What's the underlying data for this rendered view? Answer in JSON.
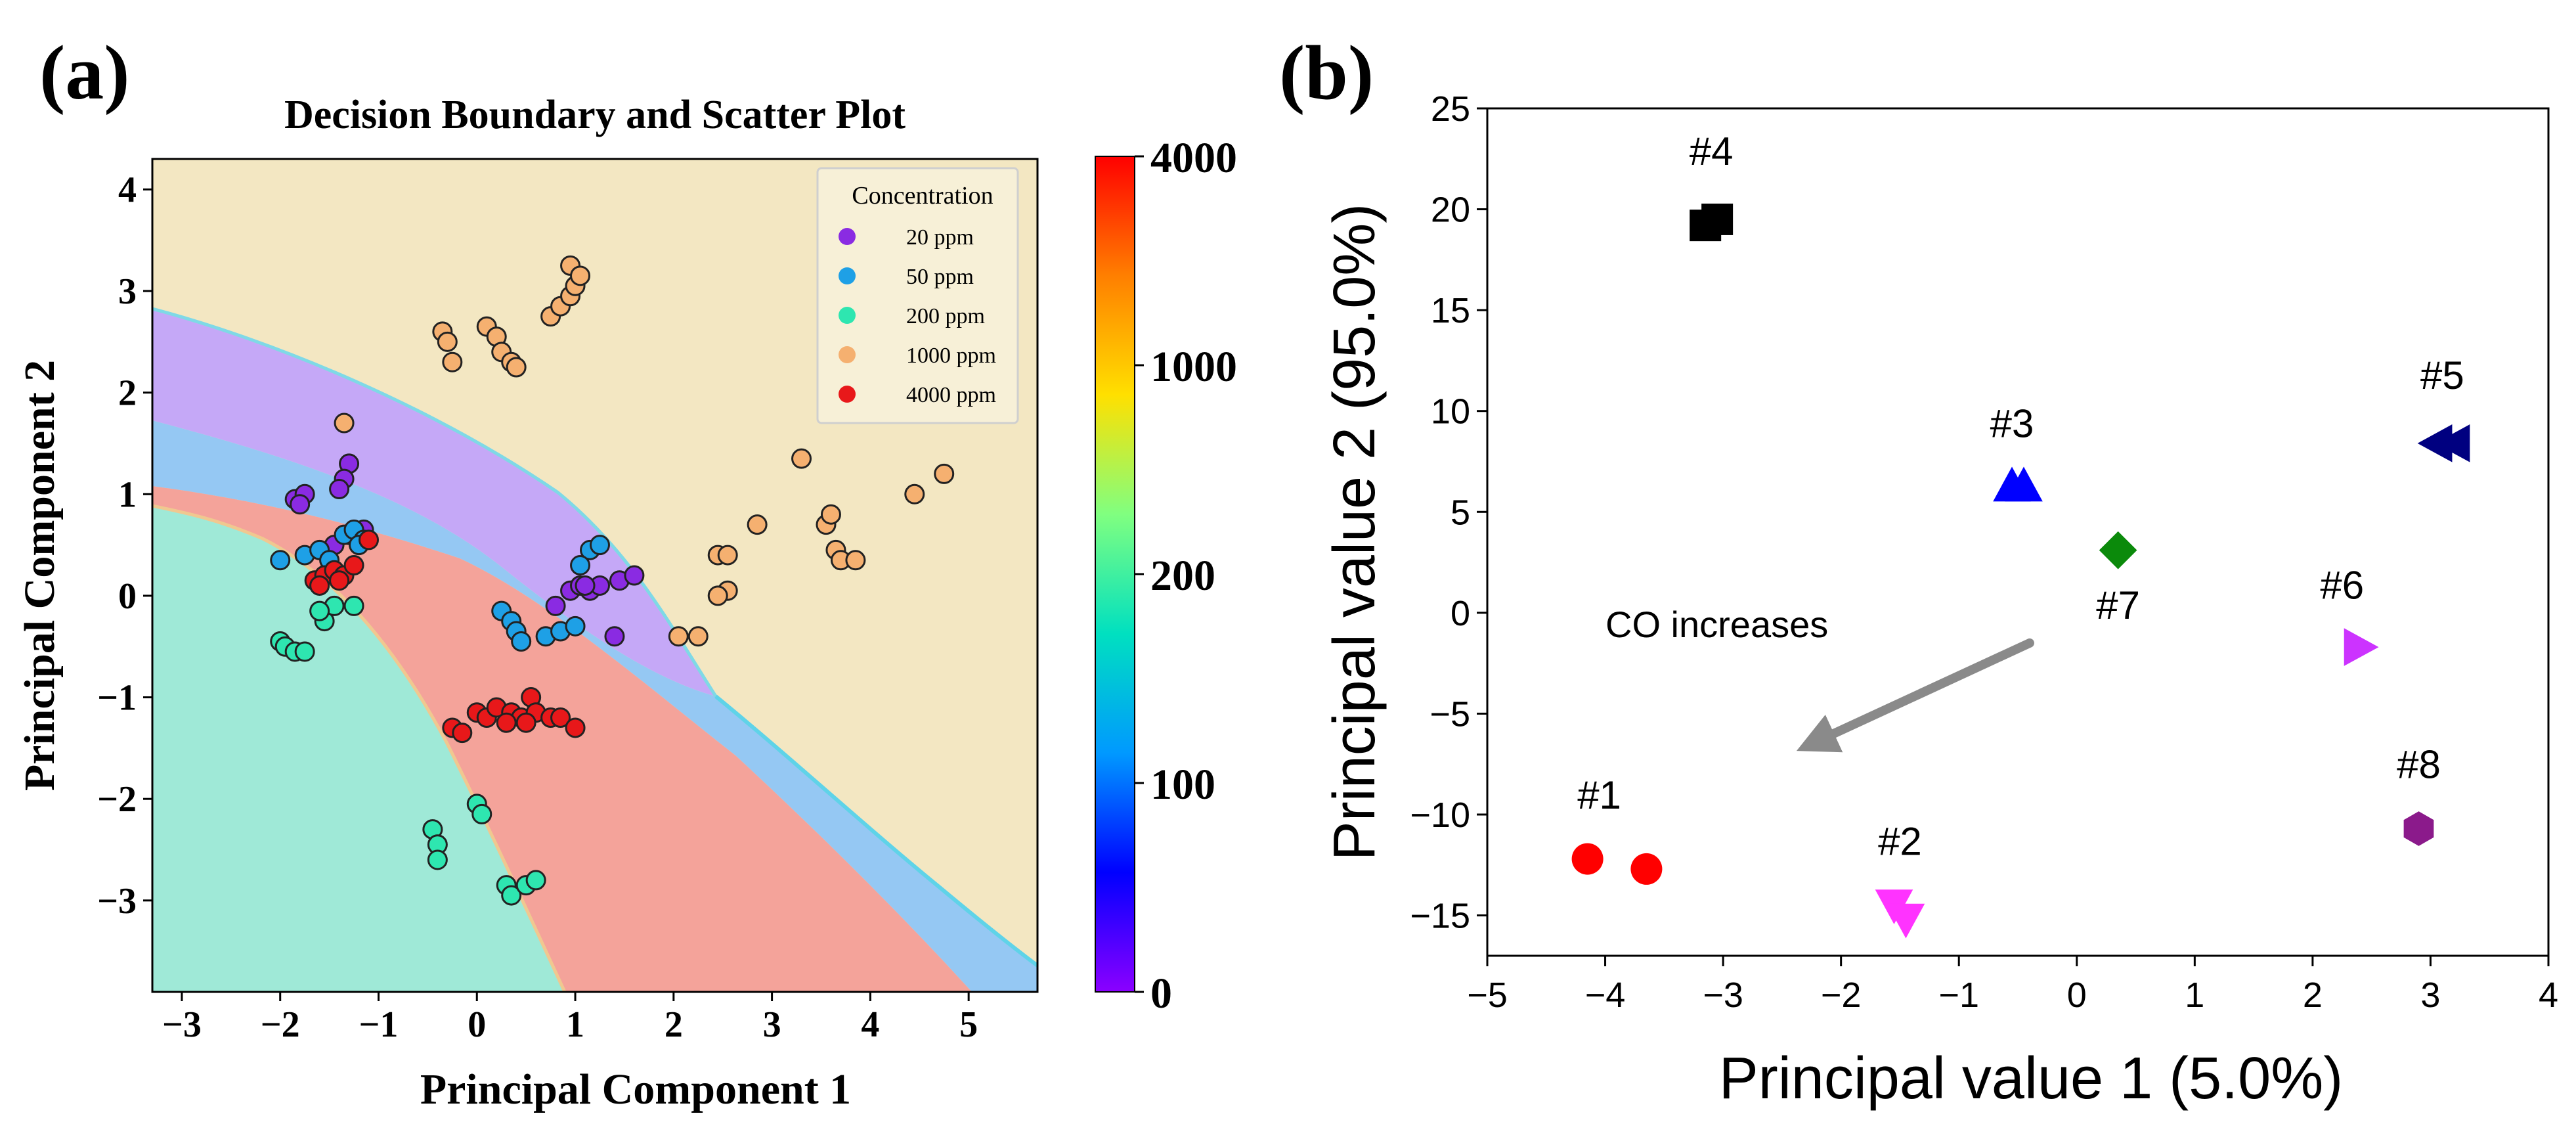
{
  "panels": {
    "a": {
      "label": "(a)"
    },
    "b": {
      "label": "(b)"
    }
  },
  "chart_data": [
    {
      "id": "a",
      "type": "scatter",
      "title": "Decision Boundary and Scatter Plot",
      "xlabel": "Principal Component 1",
      "ylabel": "Principal Component 2",
      "xlim": [
        -3.3,
        5.7
      ],
      "ylim": [
        -3.9,
        4.3
      ],
      "xticks": [
        -3,
        -2,
        -1,
        0,
        1,
        2,
        3,
        4,
        5
      ],
      "yticks": [
        -3,
        -2,
        -1,
        0,
        1,
        2,
        3,
        4
      ],
      "xticklabels": [
        "−3",
        "−2",
        "−1",
        "0",
        "1",
        "2",
        "3",
        "4",
        "5"
      ],
      "yticklabels": [
        "−3",
        "−2",
        "−1",
        "0",
        "1",
        "2",
        "3",
        "4"
      ],
      "legend": {
        "title": "Concentration",
        "position": "top-right"
      },
      "regions": [
        {
          "name": "1000 ppm region",
          "color": "#f3e7c2"
        },
        {
          "name": "20 ppm region",
          "color": "#c5a8f7"
        },
        {
          "name": "50 ppm region",
          "color": "#95c8f3"
        },
        {
          "name": "4000 ppm region",
          "color": "#f4a39a"
        },
        {
          "name": "200 ppm region",
          "color": "#9fe9d7"
        }
      ],
      "colorbar": {
        "ticks": [
          "0",
          "100",
          "200",
          "1000",
          "4000"
        ],
        "stops": [
          "#8b00ff",
          "#0000ff",
          "#0099ff",
          "#00e0c0",
          "#80ff80",
          "#ffe000",
          "#ff7f00",
          "#ff0000"
        ]
      },
      "series": [
        {
          "name": "20 ppm",
          "color": "#8a2be2",
          "points": [
            [
              -1.85,
              0.95
            ],
            [
              -1.75,
              1.0
            ],
            [
              -1.8,
              0.9
            ],
            [
              -1.3,
              1.3
            ],
            [
              -1.35,
              1.15
            ],
            [
              -1.4,
              1.05
            ],
            [
              -1.45,
              0.5
            ],
            [
              -1.15,
              0.65
            ],
            [
              -1.3,
              0.6
            ],
            [
              0.8,
              -0.1
            ],
            [
              0.95,
              0.05
            ],
            [
              1.05,
              0.1
            ],
            [
              1.15,
              0.05
            ],
            [
              1.25,
              0.1
            ],
            [
              1.45,
              0.15
            ],
            [
              1.6,
              0.2
            ],
            [
              1.4,
              -0.4
            ],
            [
              1.1,
              0.1
            ]
          ]
        },
        {
          "name": "50 ppm",
          "color": "#1ea0e6",
          "points": [
            [
              -1.75,
              0.4
            ],
            [
              -1.6,
              0.45
            ],
            [
              -1.5,
              0.35
            ],
            [
              -1.35,
              0.6
            ],
            [
              -1.25,
              0.65
            ],
            [
              -1.15,
              0.55
            ],
            [
              -2.0,
              0.35
            ],
            [
              -1.2,
              0.5
            ],
            [
              0.25,
              -0.15
            ],
            [
              0.35,
              -0.25
            ],
            [
              0.4,
              -0.35
            ],
            [
              0.45,
              -0.45
            ],
            [
              0.7,
              -0.4
            ],
            [
              0.85,
              -0.35
            ],
            [
              1.0,
              -0.3
            ],
            [
              1.15,
              0.45
            ],
            [
              1.25,
              0.5
            ],
            [
              1.05,
              0.3
            ]
          ]
        },
        {
          "name": "200 ppm",
          "color": "#2ee6b0",
          "points": [
            [
              -2.0,
              -0.45
            ],
            [
              -1.95,
              -0.5
            ],
            [
              -1.85,
              -0.55
            ],
            [
              -1.75,
              -0.55
            ],
            [
              -1.55,
              -0.25
            ],
            [
              -1.45,
              -0.1
            ],
            [
              -1.6,
              -0.15
            ],
            [
              -1.25,
              -0.1
            ],
            [
              -0.45,
              -2.3
            ],
            [
              -0.4,
              -2.45
            ],
            [
              -0.4,
              -2.6
            ],
            [
              0.0,
              -2.05
            ],
            [
              0.05,
              -2.15
            ],
            [
              0.3,
              -2.85
            ],
            [
              0.35,
              -2.95
            ],
            [
              0.5,
              -2.85
            ],
            [
              0.6,
              -2.8
            ]
          ]
        },
        {
          "name": "1000 ppm",
          "color": "#f5b070",
          "points": [
            [
              -0.35,
              2.6
            ],
            [
              -0.3,
              2.5
            ],
            [
              -0.25,
              2.3
            ],
            [
              0.1,
              2.65
            ],
            [
              0.2,
              2.55
            ],
            [
              0.25,
              2.4
            ],
            [
              0.35,
              2.3
            ],
            [
              0.4,
              2.25
            ],
            [
              0.75,
              2.75
            ],
            [
              0.85,
              2.85
            ],
            [
              0.95,
              2.95
            ],
            [
              1.0,
              3.05
            ],
            [
              0.95,
              3.25
            ],
            [
              1.05,
              3.15
            ],
            [
              -1.35,
              1.7
            ],
            [
              2.45,
              0.4
            ],
            [
              2.55,
              0.4
            ],
            [
              2.55,
              0.05
            ],
            [
              2.45,
              0.0
            ],
            [
              2.05,
              -0.4
            ],
            [
              2.25,
              -0.4
            ],
            [
              2.85,
              0.7
            ],
            [
              3.3,
              1.35
            ],
            [
              3.55,
              0.7
            ],
            [
              3.6,
              0.8
            ],
            [
              3.65,
              0.45
            ],
            [
              3.7,
              0.35
            ],
            [
              3.85,
              0.35
            ],
            [
              4.45,
              1.0
            ],
            [
              4.75,
              1.2
            ]
          ]
        },
        {
          "name": "4000 ppm",
          "color": "#e8181a",
          "points": [
            [
              -1.65,
              0.15
            ],
            [
              -1.55,
              0.2
            ],
            [
              -1.45,
              0.25
            ],
            [
              -1.35,
              0.2
            ],
            [
              -1.25,
              0.3
            ],
            [
              -1.1,
              0.55
            ],
            [
              -1.6,
              0.1
            ],
            [
              -1.4,
              0.15
            ],
            [
              -0.25,
              -1.3
            ],
            [
              -0.15,
              -1.35
            ],
            [
              0.0,
              -1.15
            ],
            [
              0.1,
              -1.2
            ],
            [
              0.2,
              -1.1
            ],
            [
              0.35,
              -1.15
            ],
            [
              0.45,
              -1.2
            ],
            [
              0.55,
              -1.0
            ],
            [
              0.6,
              -1.15
            ],
            [
              0.75,
              -1.2
            ],
            [
              0.85,
              -1.2
            ],
            [
              1.0,
              -1.3
            ],
            [
              0.3,
              -1.25
            ],
            [
              0.5,
              -1.25
            ]
          ]
        }
      ]
    },
    {
      "id": "b",
      "type": "scatter",
      "title": "",
      "xlabel": "Principal value 1 (5.0%)",
      "ylabel": "Principal value 2 (95.0%)",
      "xlim": [
        -5,
        4
      ],
      "ylim": [
        -17,
        25
      ],
      "xticks": [
        -5,
        -4,
        -3,
        -2,
        -1,
        0,
        1,
        2,
        3,
        4
      ],
      "yticks": [
        -15,
        -10,
        -5,
        0,
        5,
        10,
        15,
        20,
        25
      ],
      "xticklabels": [
        "−5",
        "−4",
        "−3",
        "−2",
        "−1",
        "0",
        "1",
        "2",
        "3",
        "4"
      ],
      "yticklabels": [
        "−15",
        "−10",
        "−5",
        "0",
        "5",
        "10",
        "15",
        "20",
        "25"
      ],
      "annotation": {
        "text": "CO increases",
        "arrow_from": [
          -0.4,
          -1.5
        ],
        "arrow_to": [
          -2.25,
          -6.5
        ]
      },
      "series": [
        {
          "name": "#1",
          "color": "#ff0000",
          "marker": "circle",
          "points": [
            [
              -4.15,
              -12.2
            ],
            [
              -3.65,
              -12.7
            ]
          ],
          "label_at": [
            -4.05,
            -9.7
          ]
        },
        {
          "name": "#2",
          "color": "#ff33ff",
          "marker": "triangle-down",
          "points": [
            [
              -1.55,
              -14.5
            ],
            [
              -1.45,
              -15.2
            ]
          ],
          "label_at": [
            -1.5,
            -12.0
          ]
        },
        {
          "name": "#3",
          "color": "#0000ff",
          "marker": "triangle-up",
          "points": [
            [
              -0.55,
              6.3
            ],
            [
              -0.45,
              6.3
            ]
          ],
          "label_at": [
            -0.55,
            8.7
          ]
        },
        {
          "name": "#4",
          "color": "#000000",
          "marker": "square",
          "points": [
            [
              -3.15,
              19.2
            ],
            [
              -3.05,
              19.5
            ]
          ],
          "label_at": [
            -3.1,
            22.2
          ]
        },
        {
          "name": "#5",
          "color": "#000080",
          "marker": "triangle-left",
          "points": [
            [
              3.05,
              8.4
            ],
            [
              3.2,
              8.4
            ]
          ],
          "label_at": [
            3.1,
            11.1
          ]
        },
        {
          "name": "#6",
          "color": "#cc33ff",
          "marker": "triangle-right",
          "points": [
            [
              2.4,
              -1.7
            ]
          ],
          "label_at": [
            2.25,
            0.7
          ]
        },
        {
          "name": "#7",
          "color": "#0b8a0b",
          "marker": "diamond",
          "points": [
            [
              0.35,
              3.1
            ]
          ],
          "label_at": [
            0.35,
            -0.3
          ]
        },
        {
          "name": "#8",
          "color": "#8b1a8b",
          "marker": "hexagon",
          "points": [
            [
              2.9,
              -10.7
            ]
          ],
          "label_at": [
            2.9,
            -8.2
          ]
        }
      ]
    }
  ]
}
